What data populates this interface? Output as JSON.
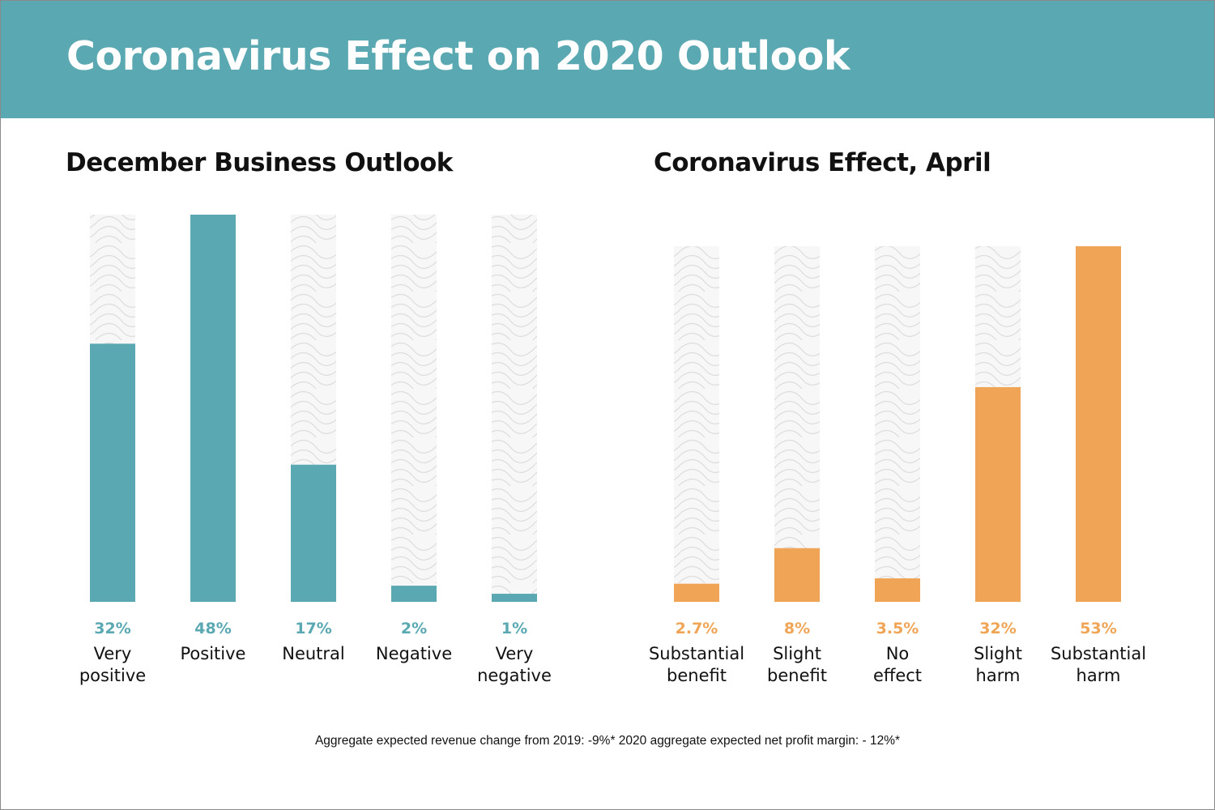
{
  "header": {
    "title": "Coronavirus Effect on 2020 Outlook"
  },
  "colors": {
    "banner": "#5aa8b1",
    "teal": "#5aa8b1",
    "orange": "#f0a556",
    "track_bg": "#f7f7f7",
    "track_line": "#dcdcdc"
  },
  "chart_data": [
    {
      "type": "bar",
      "title": "December Business Outlook",
      "categories": [
        "Very\npositive",
        "Positive",
        "Neutral",
        "Negative",
        "Very\nnegative"
      ],
      "values": [
        32,
        48,
        17,
        2,
        1
      ],
      "value_labels": [
        "32%",
        "48%",
        "17%",
        "2%",
        "1%"
      ],
      "ylim": [
        0,
        48
      ],
      "color": "#5aa8b1",
      "grid": false
    },
    {
      "type": "bar",
      "title": "Coronavirus Effect, April",
      "categories": [
        "Substantial\nbenefit",
        "Slight\nbenefit",
        "No\neffect",
        "Slight\nharm",
        "Substantial\nharm"
      ],
      "values": [
        2.7,
        8,
        3.5,
        32,
        53
      ],
      "value_labels": [
        "2.7%",
        "8%",
        "3.5%",
        "32%",
        "53%"
      ],
      "ylim": [
        0,
        53
      ],
      "color": "#f0a556",
      "grid": false
    }
  ],
  "footnote": "Aggregate expected revenue change from 2019: -9%*  2020 aggregate expected net profit margin: - 12%*"
}
